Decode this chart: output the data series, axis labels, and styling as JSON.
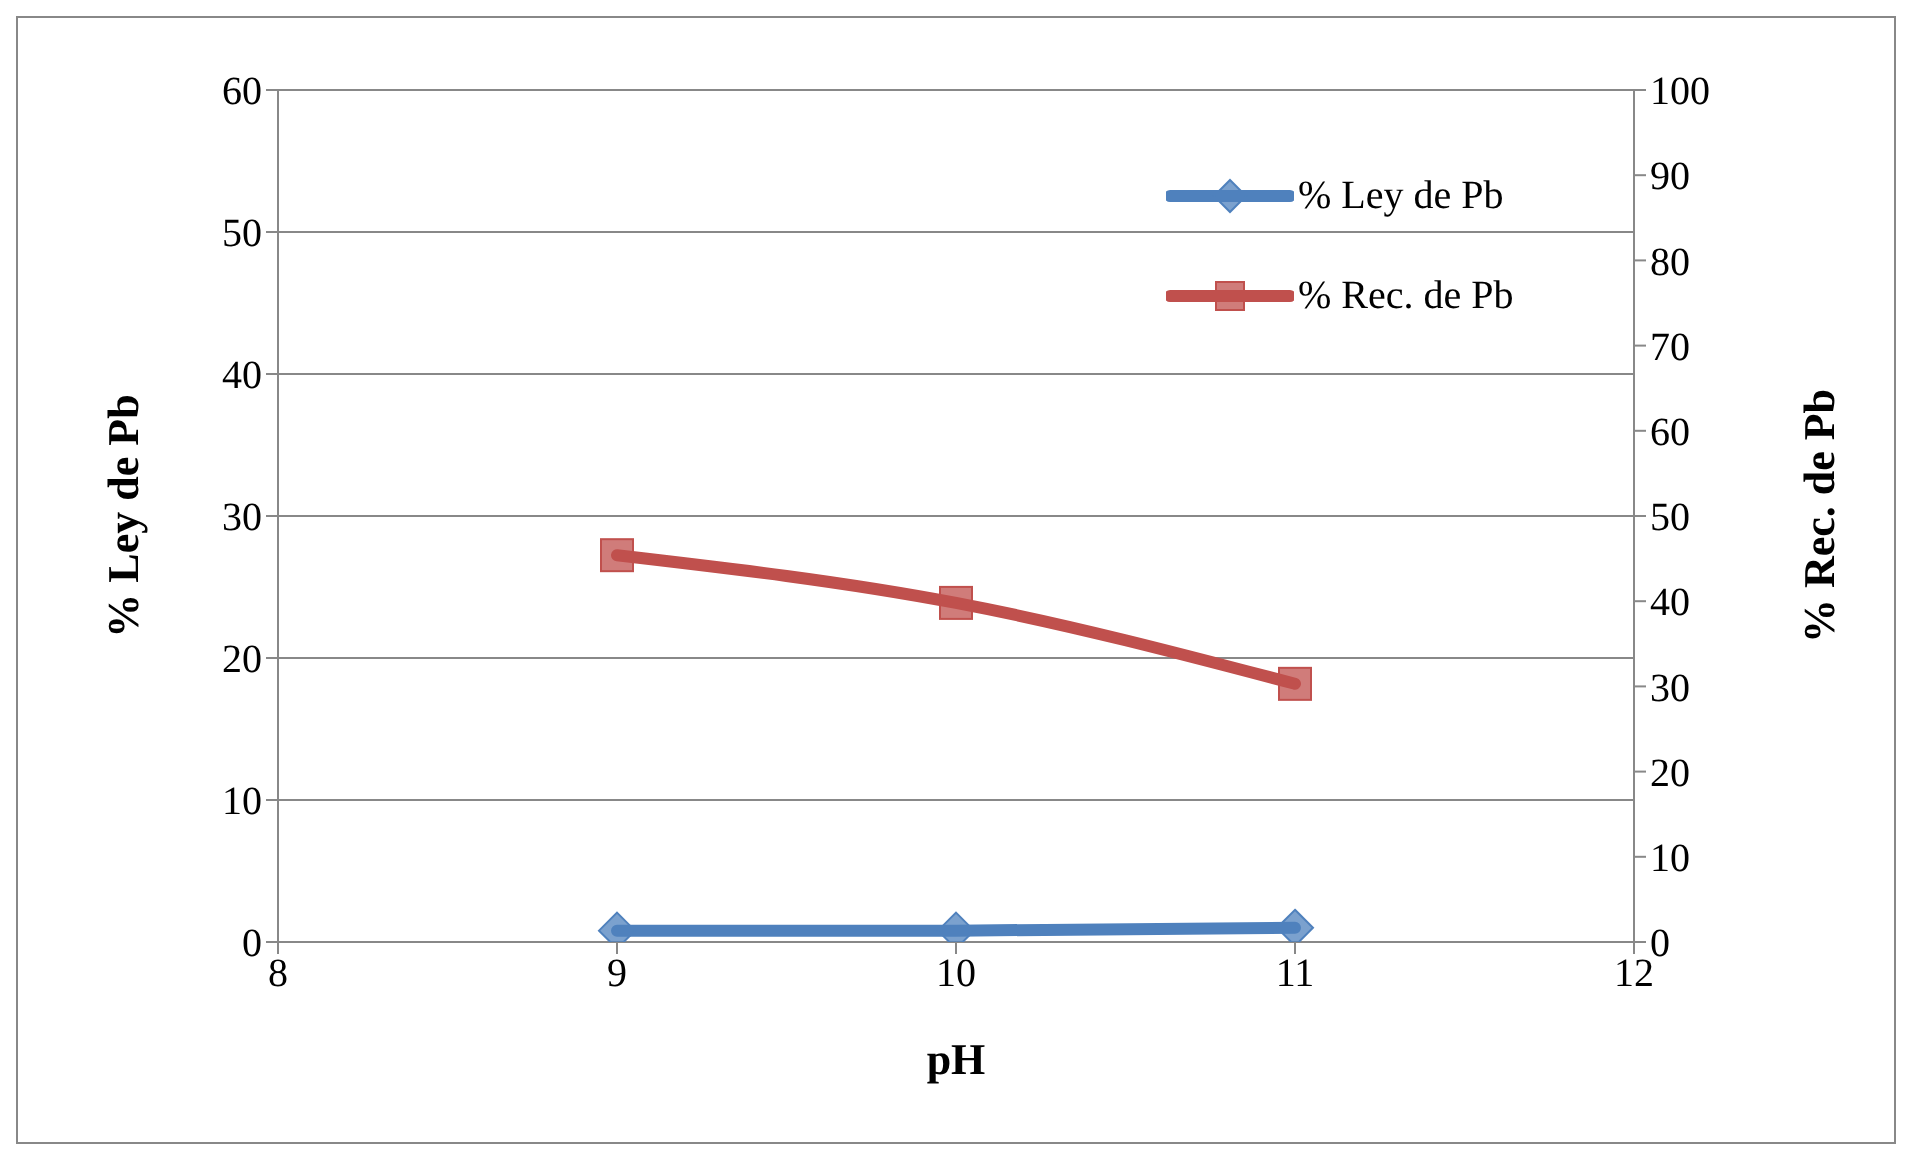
{
  "chart_data": {
    "type": "line",
    "xlabel": "pH",
    "ylabel": "% Ley de Pb",
    "y2label": "% Rec. de Pb",
    "x": [
      9,
      10,
      11
    ],
    "series": [
      {
        "name": "% Ley de Pb",
        "color": "#4f81bd",
        "values": [
          0.8,
          0.8,
          1.0
        ],
        "marker": "diamond"
      },
      {
        "name": "% Rec. de Pb",
        "color": "#c0504d",
        "values": [
          45.4,
          39.8,
          30.3
        ],
        "axis": "y2",
        "marker": "square"
      }
    ],
    "xlim": [
      8,
      12
    ],
    "xticks": [
      8,
      9,
      10,
      11,
      12
    ],
    "ylim": [
      0,
      60
    ],
    "yticks": [
      0,
      10,
      20,
      30,
      40,
      50,
      60
    ],
    "y2lim": [
      0,
      100
    ],
    "y2ticks": [
      0,
      10,
      20,
      30,
      40,
      50,
      60,
      70,
      80,
      90,
      100
    ],
    "grid": "y",
    "legend": "top right",
    "line_style": "solid"
  }
}
